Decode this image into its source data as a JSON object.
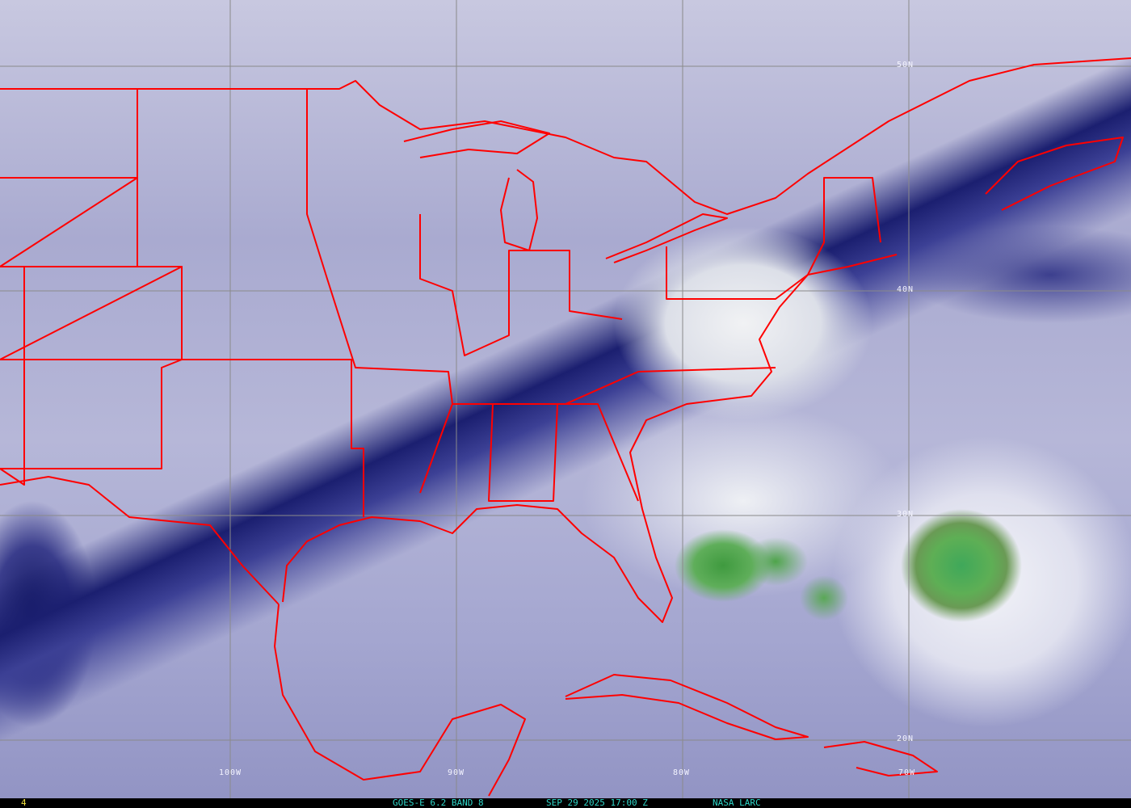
{
  "map": {
    "lat_labels": [
      "50N",
      "40N",
      "30N",
      "20N"
    ],
    "lon_labels": [
      "100W",
      "90W",
      "80W",
      "70W"
    ],
    "colors": {
      "boundaries": "#ff0000",
      "grid": "#8a8a8a",
      "cloud_tops": "#4aa04a",
      "dry_air": "#1b1f70",
      "moist": "#f0f0f8"
    }
  },
  "footer": {
    "frame": "4",
    "product": "GOES-E 6.2 BAND 8",
    "datetime": "SEP 29 2025 17:00 Z",
    "source": "NASA LARC",
    "text_color": "#2fd6c8"
  }
}
